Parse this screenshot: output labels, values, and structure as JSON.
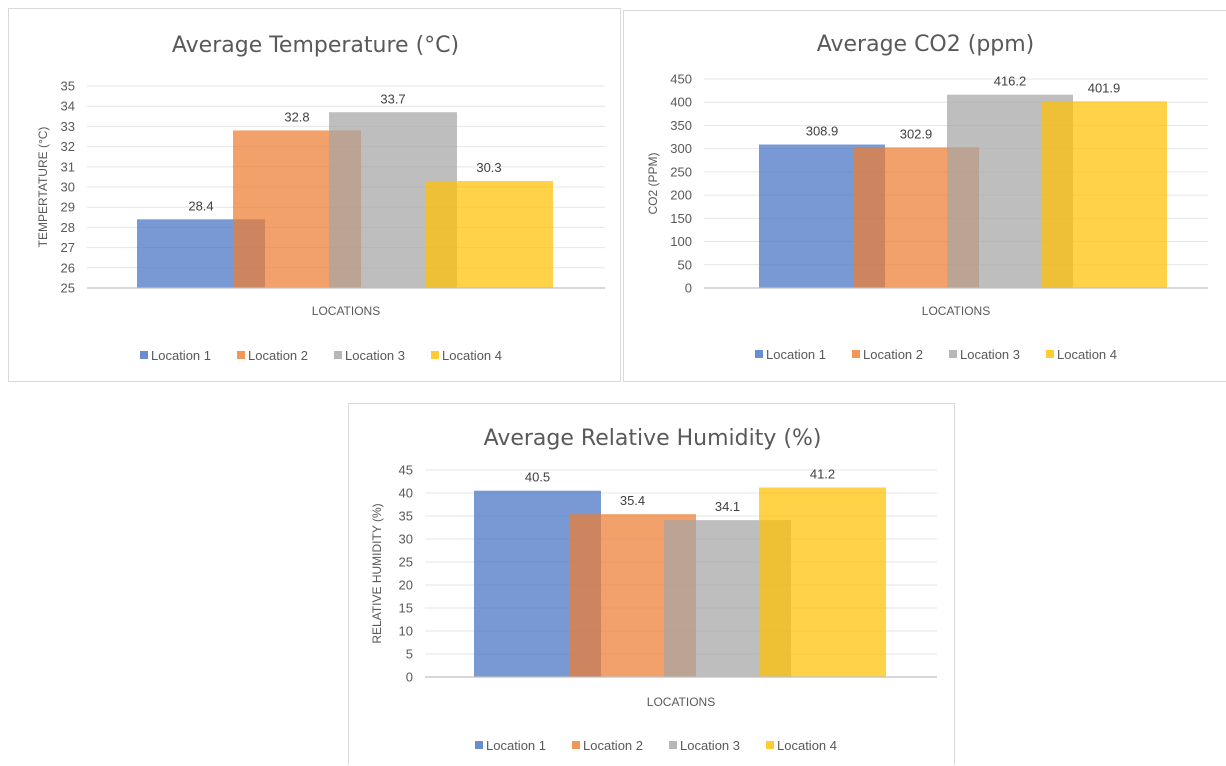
{
  "chart_data": [
    {
      "type": "bar",
      "title": "Average Temperature (°C)",
      "xlabel": "LOCATIONS",
      "ylabel": "TEMPERTATURE (°C)",
      "ylim": [
        25,
        35
      ],
      "ytick_step": 1,
      "categories": [
        ""
      ],
      "series": [
        {
          "name": "Location 1",
          "values": [
            28.4
          ],
          "color": "#4472C4"
        },
        {
          "name": "Location 2",
          "values": [
            32.8
          ],
          "color": "#ED7D31"
        },
        {
          "name": "Location 3",
          "values": [
            33.7
          ],
          "color": "#A5A5A5"
        },
        {
          "name": "Location 4",
          "values": [
            30.3
          ],
          "color": "#FFC000"
        }
      ],
      "data_labels": [
        "28.4",
        "32.8",
        "33.7",
        "30.3"
      ],
      "grid": true,
      "legend_position": "bottom"
    },
    {
      "type": "bar",
      "title": "Average CO2 (ppm)",
      "xlabel": "LOCATIONS",
      "ylabel": "CO2 (PPM)",
      "ylim": [
        0,
        450
      ],
      "ytick_step": 50,
      "categories": [
        ""
      ],
      "series": [
        {
          "name": "Location 1",
          "values": [
            308.9
          ],
          "color": "#4472C4"
        },
        {
          "name": "Location 2",
          "values": [
            302.9
          ],
          "color": "#ED7D31"
        },
        {
          "name": "Location 3",
          "values": [
            416.2
          ],
          "color": "#A5A5A5"
        },
        {
          "name": "Location 4",
          "values": [
            401.9
          ],
          "color": "#FFC000"
        }
      ],
      "data_labels": [
        "308.9",
        "302.9",
        "416.2",
        "401.9"
      ],
      "grid": true,
      "legend_position": "bottom"
    },
    {
      "type": "bar",
      "title": "Average Relative Humidity (%)",
      "xlabel": "LOCATIONS",
      "ylabel": "RELATIVE HUMIDITY (%)",
      "ylim": [
        0,
        45
      ],
      "ytick_step": 5,
      "categories": [
        ""
      ],
      "series": [
        {
          "name": "Location 1",
          "values": [
            40.5
          ],
          "color": "#4472C4"
        },
        {
          "name": "Location 2",
          "values": [
            35.4
          ],
          "color": "#ED7D31"
        },
        {
          "name": "Location 3",
          "values": [
            34.1
          ],
          "color": "#A5A5A5"
        },
        {
          "name": "Location 4",
          "values": [
            41.2
          ],
          "color": "#FFC000"
        }
      ],
      "data_labels": [
        "40.5",
        "35.4",
        "34.1",
        "41.2"
      ],
      "grid": true,
      "legend_position": "bottom"
    }
  ]
}
